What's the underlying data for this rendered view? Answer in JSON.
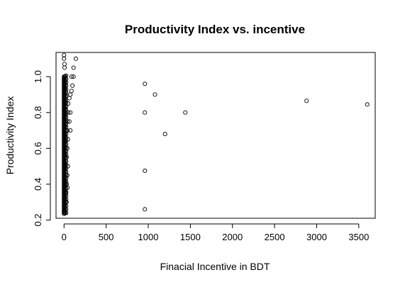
{
  "chart_data": {
    "type": "scatter",
    "title": "Productivity Index vs. incentive",
    "xlabel": "Finacial Incentive in BDT",
    "ylabel": "Productivity Index",
    "xlim": [
      -95,
      3695
    ],
    "ylim": [
      0.21,
      1.135
    ],
    "xticks": [
      0,
      500,
      1000,
      1500,
      2000,
      2500,
      3000,
      3500
    ],
    "xtick_labels": [
      "0",
      "500",
      "1000",
      "1500",
      "2000",
      "2500",
      "3000",
      "3500"
    ],
    "yticks": [
      0.2,
      0.4,
      0.6,
      0.8,
      1.0
    ],
    "ytick_labels": [
      "0.2",
      "0.4",
      "0.6",
      "0.8",
      "1.0"
    ],
    "grid": false,
    "legend": "none",
    "marker": "open-circle",
    "points": [
      [
        960,
        0.96
      ],
      [
        1080,
        0.9
      ],
      [
        960,
        0.8
      ],
      [
        1200,
        0.68
      ],
      [
        1440,
        0.8
      ],
      [
        960,
        0.475
      ],
      [
        960,
        0.26
      ],
      [
        2880,
        0.865
      ],
      [
        3600,
        0.845
      ],
      [
        140,
        1.1
      ],
      [
        113,
        1.05
      ],
      [
        113,
        1.0
      ],
      [
        90,
        1.0
      ],
      [
        100,
        0.95
      ],
      [
        88,
        0.92
      ],
      [
        75,
        0.9
      ],
      [
        63,
        0.88
      ],
      [
        50,
        0.8
      ],
      [
        75,
        0.8
      ],
      [
        40,
        0.75
      ],
      [
        75,
        0.7
      ],
      [
        40,
        0.7
      ],
      [
        63,
        0.75
      ],
      [
        50,
        0.85
      ],
      [
        45,
        0.65
      ],
      [
        38,
        0.6
      ],
      [
        30,
        0.55
      ],
      [
        45,
        0.5
      ],
      [
        38,
        0.45
      ],
      [
        30,
        0.4
      ],
      [
        40,
        0.38
      ],
      [
        23,
        0.35
      ],
      [
        30,
        0.3
      ],
      [
        0,
        1.12
      ],
      [
        0,
        1.1
      ]
    ]
  }
}
